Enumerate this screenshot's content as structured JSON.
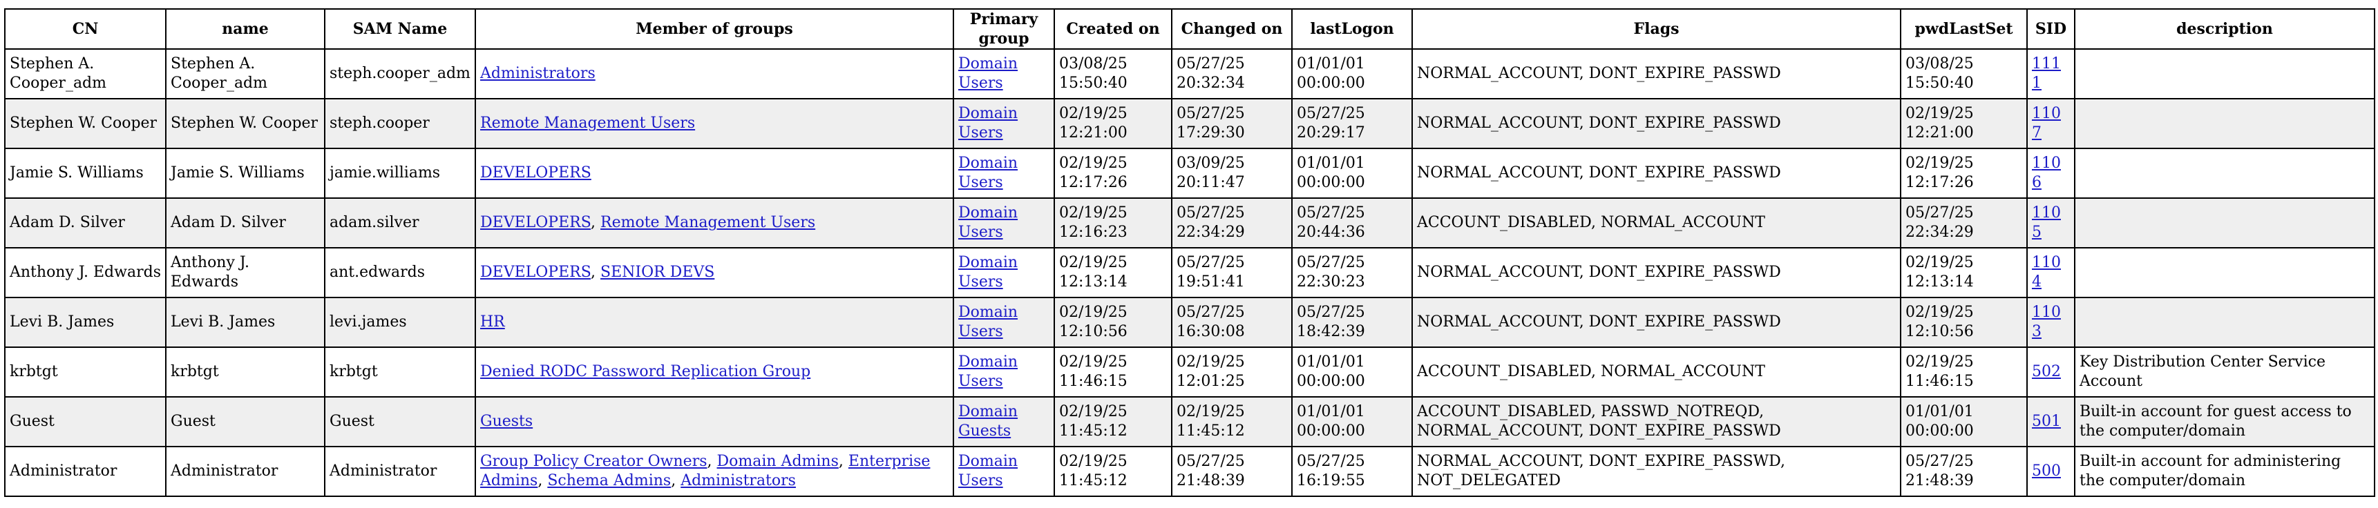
{
  "colors": {
    "link": "#1c1cc8",
    "row_alt": "#efefef",
    "border": "#000000"
  },
  "table": {
    "headers": {
      "cn": "CN",
      "name": "name",
      "sam": "SAM Name",
      "groups": "Member of groups",
      "primary": "Primary group",
      "created": "Created on",
      "changed": "Changed on",
      "lastlogon": "lastLogon",
      "flags": "Flags",
      "pwdlastset": "pwdLastSet",
      "sid": "SID",
      "description": "description"
    },
    "rows": [
      {
        "cn": "Stephen A. Cooper_adm",
        "name": "Stephen A. Cooper_adm",
        "sam": "steph.cooper_adm",
        "groups": [
          "Administrators"
        ],
        "primary": "Domain Users",
        "created": "03/08/25 15:50:40",
        "changed": "05/27/25 20:32:34",
        "lastlogon": "01/01/01 00:00:00",
        "flags": "NORMAL_ACCOUNT, DONT_EXPIRE_PASSWD",
        "pwdlastset": "03/08/25 15:50:40",
        "sid": "1111",
        "description": ""
      },
      {
        "cn": "Stephen W. Cooper",
        "name": "Stephen W. Cooper",
        "sam": "steph.cooper",
        "groups": [
          "Remote Management Users"
        ],
        "primary": "Domain Users",
        "created": "02/19/25 12:21:00",
        "changed": "05/27/25 17:29:30",
        "lastlogon": "05/27/25 20:29:17",
        "flags": "NORMAL_ACCOUNT, DONT_EXPIRE_PASSWD",
        "pwdlastset": "02/19/25 12:21:00",
        "sid": "1107",
        "description": ""
      },
      {
        "cn": "Jamie S. Williams",
        "name": "Jamie S. Williams",
        "sam": "jamie.williams",
        "groups": [
          "DEVELOPERS"
        ],
        "primary": "Domain Users",
        "created": "02/19/25 12:17:26",
        "changed": "03/09/25 20:11:47",
        "lastlogon": "01/01/01 00:00:00",
        "flags": "NORMAL_ACCOUNT, DONT_EXPIRE_PASSWD",
        "pwdlastset": "02/19/25 12:17:26",
        "sid": "1106",
        "description": ""
      },
      {
        "cn": "Adam D. Silver",
        "name": "Adam D. Silver",
        "sam": "adam.silver",
        "groups": [
          "DEVELOPERS",
          "Remote Management Users"
        ],
        "primary": "Domain Users",
        "created": "02/19/25 12:16:23",
        "changed": "05/27/25 22:34:29",
        "lastlogon": "05/27/25 20:44:36",
        "flags": "ACCOUNT_DISABLED, NORMAL_ACCOUNT",
        "pwdlastset": "05/27/25 22:34:29",
        "sid": "1105",
        "description": ""
      },
      {
        "cn": "Anthony J. Edwards",
        "name": "Anthony J. Edwards",
        "sam": "ant.edwards",
        "groups": [
          "DEVELOPERS",
          "SENIOR DEVS"
        ],
        "primary": "Domain Users",
        "created": "02/19/25 12:13:14",
        "changed": "05/27/25 19:51:41",
        "lastlogon": "05/27/25 22:30:23",
        "flags": "NORMAL_ACCOUNT, DONT_EXPIRE_PASSWD",
        "pwdlastset": "02/19/25 12:13:14",
        "sid": "1104",
        "description": ""
      },
      {
        "cn": "Levi B. James",
        "name": "Levi B. James",
        "sam": "levi.james",
        "groups": [
          "HR"
        ],
        "primary": "Domain Users",
        "created": "02/19/25 12:10:56",
        "changed": "05/27/25 16:30:08",
        "lastlogon": "05/27/25 18:42:39",
        "flags": "NORMAL_ACCOUNT, DONT_EXPIRE_PASSWD",
        "pwdlastset": "02/19/25 12:10:56",
        "sid": "1103",
        "description": ""
      },
      {
        "cn": "krbtgt",
        "name": "krbtgt",
        "sam": "krbtgt",
        "groups": [
          "Denied RODC Password Replication Group"
        ],
        "primary": "Domain Users",
        "created": "02/19/25 11:46:15",
        "changed": "02/19/25 12:01:25",
        "lastlogon": "01/01/01 00:00:00",
        "flags": "ACCOUNT_DISABLED, NORMAL_ACCOUNT",
        "pwdlastset": "02/19/25 11:46:15",
        "sid": "502",
        "description": "Key Distribution Center Service Account"
      },
      {
        "cn": "Guest",
        "name": "Guest",
        "sam": "Guest",
        "groups": [
          "Guests"
        ],
        "primary": "Domain Guests",
        "created": "02/19/25 11:45:12",
        "changed": "02/19/25 11:45:12",
        "lastlogon": "01/01/01 00:00:00",
        "flags": "ACCOUNT_DISABLED, PASSWD_NOTREQD, NORMAL_ACCOUNT, DONT_EXPIRE_PASSWD",
        "pwdlastset": "01/01/01 00:00:00",
        "sid": "501",
        "description": "Built-in account for guest access to the computer/domain"
      },
      {
        "cn": "Administrator",
        "name": "Administrator",
        "sam": "Administrator",
        "groups": [
          "Group Policy Creator Owners",
          "Domain Admins",
          "Enterprise Admins",
          "Schema Admins",
          "Administrators"
        ],
        "primary": "Domain Users",
        "created": "02/19/25 11:45:12",
        "changed": "05/27/25 21:48:39",
        "lastlogon": "05/27/25 16:19:55",
        "flags": "NORMAL_ACCOUNT, DONT_EXPIRE_PASSWD, NOT_DELEGATED",
        "pwdlastset": "05/27/25 21:48:39",
        "sid": "500",
        "description": "Built-in account for administering the computer/domain"
      }
    ]
  }
}
